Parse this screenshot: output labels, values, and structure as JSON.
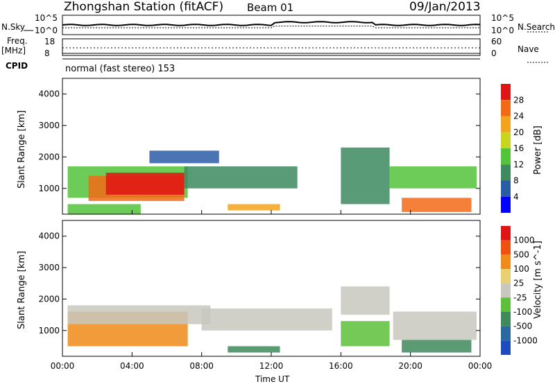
{
  "header": {
    "title": "Zhongshan Station (fitACF)",
    "beam": "Beam 01",
    "date": "09/Jan/2013"
  },
  "top_panel": {
    "nsky_label": "N.Sky",
    "nsearch_label": "N.Search",
    "left_ticks": [
      "10^5",
      "10^0"
    ],
    "right_ticks": [
      "10^5",
      "10^0"
    ]
  },
  "freq_panel": {
    "freq_label_line1": "Freq.",
    "freq_label_line2": "[MHz]",
    "nave_label": "Nave",
    "left_ticks": [
      "18",
      "8"
    ],
    "right_ticks": [
      "60",
      "0"
    ]
  },
  "cpid": {
    "label": "CPID",
    "text": "normal (fast stereo) 153"
  },
  "chart_data": [
    {
      "type": "heatmap",
      "name": "power",
      "ylabel": "Slant Range [km]",
      "ylim": [
        180,
        4500
      ],
      "yticks": [
        "4000",
        "3000",
        "2000",
        "1000"
      ],
      "xlim": [
        0,
        24
      ],
      "colorbar_label": "Power [dB]",
      "colorbar_ticks": [
        "28",
        "24",
        "20",
        "16",
        "12",
        "8",
        "4"
      ],
      "colorbar_colors": [
        "#0000ff",
        "#2b5ca8",
        "#3d8a5f",
        "#53c33a",
        "#c7d51f",
        "#f3a31c",
        "#f36a16",
        "#e01414"
      ],
      "blobs": [
        {
          "t0": 0.3,
          "t1": 7.2,
          "r0": 700,
          "r1": 1700,
          "c": "#53c33a"
        },
        {
          "t0": 1.5,
          "t1": 7.0,
          "r0": 600,
          "r1": 1400,
          "c": "#f36a16"
        },
        {
          "t0": 0.3,
          "t1": 4.5,
          "r0": 180,
          "r1": 500,
          "c": "#53c33a"
        },
        {
          "t0": 2.5,
          "t1": 7.0,
          "r0": 800,
          "r1": 1500,
          "c": "#e01414"
        },
        {
          "t0": 7.0,
          "t1": 13.5,
          "r0": 1000,
          "r1": 1700,
          "c": "#3d8a5f"
        },
        {
          "t0": 9.5,
          "t1": 12.5,
          "r0": 300,
          "r1": 500,
          "c": "#f3a31c"
        },
        {
          "t0": 16.0,
          "t1": 18.8,
          "r0": 500,
          "r1": 2300,
          "c": "#3d8a5f"
        },
        {
          "t0": 18.8,
          "t1": 23.8,
          "r0": 1000,
          "r1": 1700,
          "c": "#53c33a"
        },
        {
          "t0": 19.5,
          "t1": 23.5,
          "r0": 250,
          "r1": 700,
          "c": "#f36a16"
        },
        {
          "t0": 5.0,
          "t1": 9.0,
          "r0": 1800,
          "r1": 2200,
          "c": "#2b5ca8"
        }
      ]
    },
    {
      "type": "heatmap",
      "name": "velocity",
      "ylabel": "Slant Range [km]",
      "xlabel": "Time UT",
      "ylim": [
        180,
        4500
      ],
      "yticks": [
        "4000",
        "3000",
        "2000",
        "1000"
      ],
      "xlim": [
        0,
        24
      ],
      "xticks": [
        "00:00",
        "04:00",
        "08:00",
        "12:00",
        "16:00",
        "20:00",
        "00:00"
      ],
      "colorbar_label": "Velocity [m s^-1]",
      "colorbar_ticks": [
        "1000",
        "500",
        "100",
        "25",
        "-25",
        "-100",
        "-500",
        "-1000"
      ],
      "colorbar_colors": [
        "#1e4cc0",
        "#2a6aa0",
        "#3e8a5a",
        "#5cc03a",
        "#c8c8c0",
        "#e8d070",
        "#f08a18",
        "#f05010",
        "#e01414"
      ],
      "blobs": [
        {
          "t0": 0.3,
          "t1": 7.2,
          "r0": 500,
          "r1": 1600,
          "c": "#f08a18"
        },
        {
          "t0": 0.3,
          "t1": 8.5,
          "r0": 1200,
          "r1": 1800,
          "c": "#c8c8c0"
        },
        {
          "t0": 8.0,
          "t1": 15.5,
          "r0": 1000,
          "r1": 1700,
          "c": "#c8c8c0"
        },
        {
          "t0": 9.5,
          "t1": 12.5,
          "r0": 300,
          "r1": 500,
          "c": "#3e8a5a"
        },
        {
          "t0": 16.0,
          "t1": 18.8,
          "r0": 1500,
          "r1": 2400,
          "c": "#c8c8c0"
        },
        {
          "t0": 16.0,
          "t1": 18.8,
          "r0": 500,
          "r1": 1300,
          "c": "#5cc03a"
        },
        {
          "t0": 19.0,
          "t1": 23.8,
          "r0": 700,
          "r1": 1600,
          "c": "#c8c8c0"
        },
        {
          "t0": 19.5,
          "t1": 23.5,
          "r0": 300,
          "r1": 700,
          "c": "#3e8a5a"
        }
      ]
    }
  ]
}
